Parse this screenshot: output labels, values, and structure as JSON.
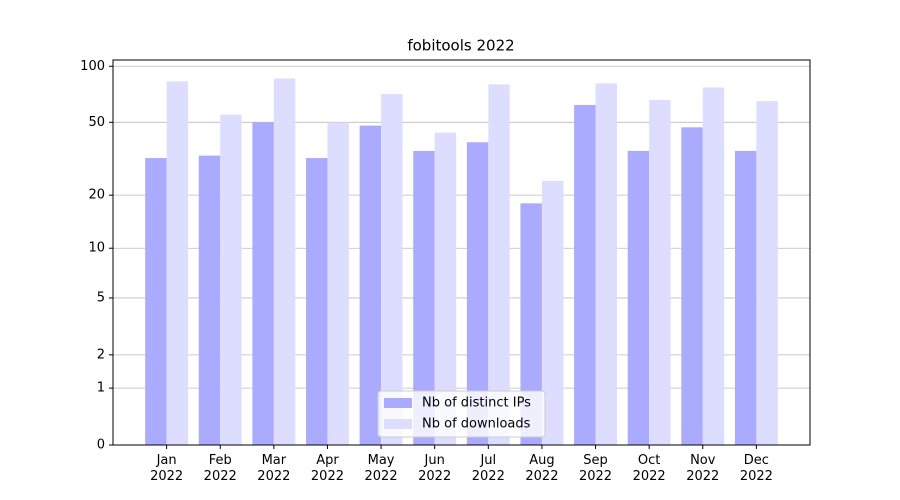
{
  "chart_data": {
    "type": "bar",
    "title": "fobitools 2022",
    "categories": [
      "Jan 2022",
      "Feb 2022",
      "Mar 2022",
      "Apr 2022",
      "May 2022",
      "Jun 2022",
      "Jul 2022",
      "Aug 2022",
      "Sep 2022",
      "Oct 2022",
      "Nov 2022",
      "Dec 2022"
    ],
    "series": [
      {
        "name": "Nb of distinct IPs",
        "color": "#aaaaff",
        "values": [
          32,
          33,
          50,
          32,
          48,
          35,
          39,
          18,
          62,
          35,
          47,
          35
        ]
      },
      {
        "name": "Nb of downloads",
        "color": "#ddddff",
        "values": [
          83,
          55,
          86,
          50,
          71,
          44,
          80,
          24,
          81,
          66,
          77,
          65
        ]
      }
    ],
    "yscale": "log1p",
    "ylim": [
      0,
      108
    ],
    "yticks": [
      0,
      1,
      2,
      5,
      10,
      20,
      50,
      100
    ],
    "grid": true,
    "legend": "lower center"
  }
}
